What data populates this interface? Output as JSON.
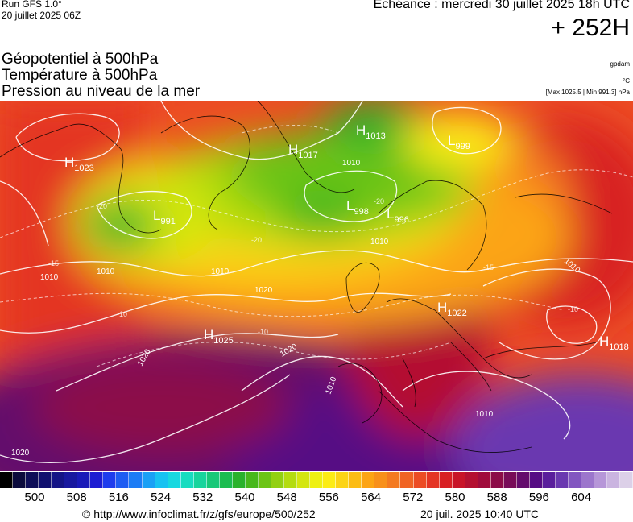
{
  "header": {
    "run": "Run GFS 1.0°",
    "run_date": "20 juillet 2025 06Z",
    "echeance": "Echéance : mercredi 30 juillet 2025 18h UTC",
    "lead": "+ 252H"
  },
  "titles": {
    "geopotential": "Géopotentiel à 500hPa",
    "temperature": "Température à 500hPa",
    "pressure": "Pression au niveau de la mer"
  },
  "units": {
    "geopotential": "gpdam",
    "temperature": "°C",
    "pressure": "[Max 1025.5 | Min 991.3] hPa"
  },
  "map": {
    "pressure_centers": [
      {
        "type": "H",
        "value": "1023"
      },
      {
        "type": "H",
        "value": "1017"
      },
      {
        "type": "H",
        "value": "1013"
      },
      {
        "type": "L",
        "value": "999"
      },
      {
        "type": "L",
        "value": "991"
      },
      {
        "type": "L",
        "value": "998"
      },
      {
        "type": "L",
        "value": "996"
      },
      {
        "type": "H",
        "value": "1022"
      },
      {
        "type": "H",
        "value": "1025"
      },
      {
        "type": "H",
        "value": "1018"
      }
    ],
    "isobar_labels": [
      "1010",
      "1020",
      "1010",
      "1020",
      "1010",
      "1020",
      "1010",
      "1010",
      "1010",
      "1010",
      "1020",
      "1010"
    ],
    "isotherm_labels": [
      "-20",
      "-20",
      "-15",
      "-10",
      "-10",
      "-10",
      "-15",
      "-20"
    ]
  },
  "scale": {
    "colors": [
      "#000000",
      "#0b0b3c",
      "#0e0e58",
      "#10106f",
      "#141486",
      "#18189f",
      "#1a1ab8",
      "#1d1dd2",
      "#1e3ced",
      "#1e5cf2",
      "#1c7cf5",
      "#1aa0f5",
      "#18c2f1",
      "#18d8e0",
      "#18dcc0",
      "#18d49c",
      "#18c878",
      "#1cbc50",
      "#2ab22c",
      "#48b81c",
      "#6cc416",
      "#92d012",
      "#b4dc10",
      "#d4e610",
      "#eef012",
      "#fcec14",
      "#fcd414",
      "#fcbc14",
      "#fca414",
      "#f8901a",
      "#f47a20",
      "#f06424",
      "#ec4c24",
      "#e43424",
      "#d82024",
      "#c81428",
      "#b41030",
      "#a00c3c",
      "#8c0c48",
      "#780c58",
      "#640c6c",
      "#560c84",
      "#5a1e9c",
      "#6a38b0",
      "#8256c0",
      "#9c76cc",
      "#b696d8",
      "#cab4e0",
      "#dcd0e8"
    ],
    "ticks": [
      "500",
      "508",
      "516",
      "524",
      "532",
      "540",
      "548",
      "556",
      "564",
      "572",
      "580",
      "588",
      "596",
      "604"
    ]
  },
  "footer": {
    "credit": "© http://www.infoclimat.fr/z/gfs/europe/500/252",
    "generated": "20 juil. 2025 10:40 UTC"
  }
}
